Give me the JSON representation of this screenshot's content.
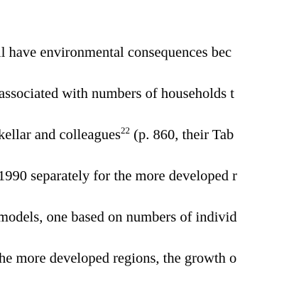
{
  "document": {
    "lines": [
      "ll have environmental consequences bec",
      "associated with numbers of households t",
      "kellar and colleagues",
      "1990 separately for the more developed r",
      "models, one based on numbers of individ",
      "he more developed regions, the growth o"
    ],
    "line3_superscript": "22",
    "line3_tail": " (p. 860, their Tab"
  }
}
